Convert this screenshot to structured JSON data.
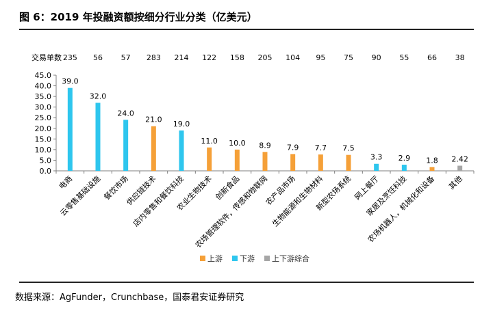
{
  "title": "图 6：2019 年投融资额按细分行业分类（亿美元）",
  "source": "数据来源：AgFunder，Crunchbase，国泰君安证券研究",
  "colors": {
    "upstream": "#F5A038",
    "downstream": "#2EC6EE",
    "combined": "#A6A6A6",
    "axis": "#7F7F7F"
  },
  "chart_data": {
    "type": "bar",
    "title": "2019 年投融资额按细分行业分类（亿美元）",
    "categories": [
      "电商",
      "云零售基础设施",
      "餐饮市场",
      "供应链技术",
      "店内零售和餐饮科技",
      "农业生物技术",
      "创新食品",
      "农场管理软件，传感和物联网",
      "农产品市场",
      "生物能源和生物材料",
      "新型农场系统",
      "网上餐厅",
      "家居及烹饪科技",
      "农场机器人，机械化和设备",
      "其他"
    ],
    "values": [
      39.0,
      32.0,
      24.0,
      21.0,
      19.0,
      11.0,
      10.0,
      8.9,
      7.9,
      7.7,
      7.5,
      3.3,
      2.9,
      1.8,
      2.42
    ],
    "value_labels": [
      "39.0",
      "32.0",
      "24.0",
      "21.0",
      "19.0",
      "11.0",
      "10.0",
      "8.9",
      "7.9",
      "7.7",
      "7.5",
      "3.3",
      "2.9",
      "1.8",
      "2.42"
    ],
    "groups": [
      "下游",
      "下游",
      "下游",
      "上游",
      "下游",
      "上游",
      "上游",
      "上游",
      "上游",
      "上游",
      "上游",
      "下游",
      "下游",
      "上游",
      "上下游综合"
    ],
    "deal_counts_label": "交易单数",
    "deal_counts": [
      "235",
      "56",
      "57",
      "283",
      "214",
      "122",
      "158",
      "205",
      "104",
      "95",
      "75",
      "90",
      "55",
      "66",
      "38"
    ],
    "ylim": [
      0,
      45
    ],
    "yticks": [
      "0.0",
      "5.0",
      "10.0",
      "15.0",
      "20.0",
      "25.0",
      "30.0",
      "35.0",
      "40.0",
      "45.0"
    ],
    "legend": [
      {
        "group": "上游",
        "label": "上游"
      },
      {
        "group": "下游",
        "label": "下游"
      },
      {
        "group": "上下游综合",
        "label": "上下游综合"
      }
    ],
    "legend_position": "bottom-center",
    "grid": false
  }
}
